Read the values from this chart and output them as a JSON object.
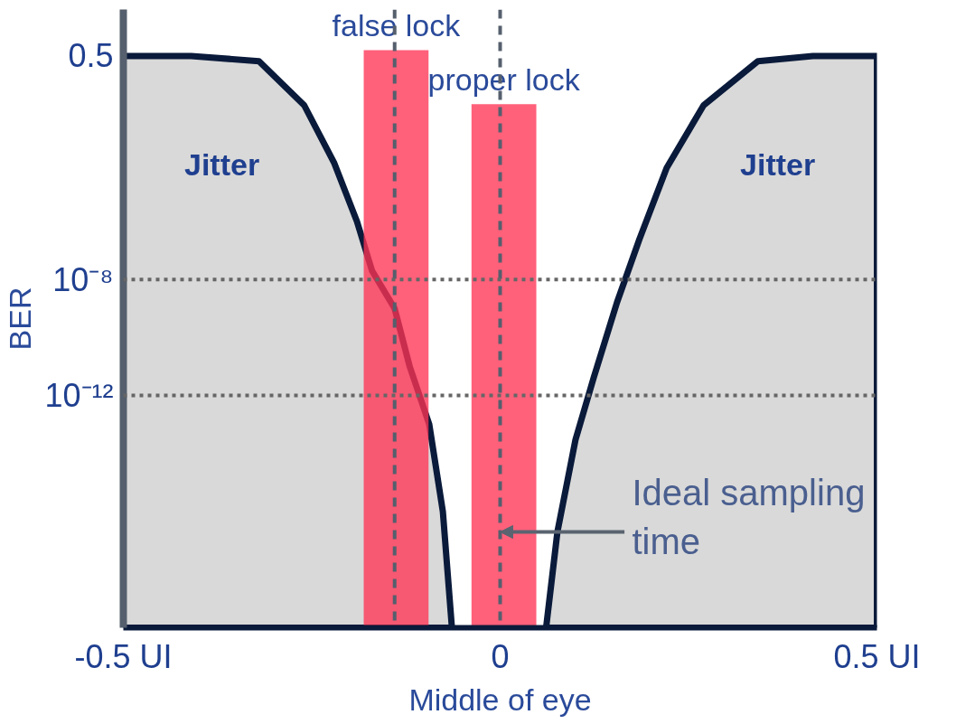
{
  "chart_data": {
    "type": "area",
    "xlabel": "Middle of eye",
    "ylabel": "BER",
    "log": "y",
    "grid": false,
    "legend": false,
    "line_style": "solid",
    "xlim": [
      -0.5,
      0.5
    ],
    "ylim": [
      1e-20,
      20
    ],
    "xticks": [
      {
        "value": -0.5,
        "label": "-0.5 UI"
      },
      0,
      {
        "value": 0.5,
        "label": "0.5 UI"
      }
    ],
    "yticks": [
      {
        "value": 0.5,
        "label": "0.5"
      },
      {
        "value": 1e-08,
        "label": "10⁻⁸"
      },
      {
        "value": 1e-12,
        "label": "10⁻¹²"
      }
    ],
    "series": [
      {
        "name": "Jitter",
        "color": "#d9d9d9",
        "x": [
          -0.5,
          -0.41,
          -0.32,
          -0.26,
          -0.22,
          -0.19,
          -0.17,
          -0.14,
          -0.12,
          -0.094,
          -0.076,
          -0.064
        ],
        "values": [
          0.5,
          0.5,
          0.33,
          0.01,
          0.0001,
          1e-06,
          2e-08,
          1e-09,
          1e-11,
          1e-13,
          1e-16,
          1e-20
        ]
      },
      {
        "name": "Jitter",
        "color": "#d9d9d9",
        "x": [
          0.061,
          0.076,
          0.1,
          0.124,
          0.155,
          0.185,
          0.221,
          0.27,
          0.342,
          0.415,
          0.5
        ],
        "values": [
          1e-20,
          2e-17,
          3e-14,
          4e-12,
          1.6e-09,
          2.5e-07,
          7e-05,
          0.01,
          0.33,
          0.5,
          0.5
        ]
      },
      {
        "type": "bar",
        "name": "false lock",
        "color": "#ff3355",
        "x": [
          -0.138
        ],
        "values": [
          0.8
        ]
      },
      {
        "type": "bar",
        "name": "proper lock",
        "color": "#ff3355",
        "x": [
          0.005
        ],
        "values": [
          0.011
        ]
      }
    ],
    "ref_lines": [
      {
        "axis": "x",
        "value": -0.14,
        "color": "#555f6d",
        "line_style": "dashed"
      },
      {
        "axis": "x",
        "value": 0,
        "color": "#555f6d",
        "line_style": "dashed"
      },
      {
        "axis": "y",
        "value": 1e-08,
        "color": "#666666",
        "line_style": "dotted"
      },
      {
        "axis": "y",
        "value": 1e-12,
        "color": "#666666",
        "line_style": "dotted"
      }
    ],
    "annotations": [
      {
        "text": "Ideal sampling time",
        "x": 0,
        "y": 2e-17
      }
    ]
  }
}
